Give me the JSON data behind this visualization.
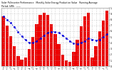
{
  "title_line1": "Solar PV/Inverter Performance   Monthly Solar Energy Production Value   Running Average",
  "title_line2": "Period: kWh   ——",
  "bar_color": "#ee0000",
  "line_color": "#0000dd",
  "background_color": "#ffffff",
  "grid_color": "#aaaaaa",
  "bar_values": [
    85,
    70,
    52,
    35,
    18,
    12,
    15,
    30,
    50,
    72,
    88,
    92,
    88,
    72,
    55,
    38,
    20,
    10,
    8,
    25,
    45,
    68,
    85,
    92,
    15,
    35,
    60,
    78,
    95
  ],
  "running_avg": [
    85,
    80,
    74,
    67,
    59,
    51,
    45,
    40,
    40,
    43,
    48,
    53,
    57,
    59,
    59,
    57,
    53,
    48,
    43,
    39,
    38,
    40,
    43,
    48,
    46,
    44,
    46,
    50,
    55
  ],
  "n_bars": 29,
  "ylim": [
    0,
    100
  ],
  "ytick_vals": [
    0,
    10,
    20,
    30,
    40,
    50,
    60,
    70,
    80,
    90,
    100
  ],
  "ytick_labels": [
    "0.",
    "1.",
    "2.",
    "3.",
    "4.",
    "5.",
    "6.",
    "7.",
    "8.",
    "9.",
    "1."
  ],
  "xtick_labels": [
    "Jan\n'08",
    "Feb\n'08",
    "Mar\n'08",
    "Apr\n'08",
    "May\n'08",
    "Jun\n'08",
    "Jul\n'08",
    "Aug\n'08",
    "Sep\n'08",
    "Oct\n'08",
    "Nov\n'08",
    "Dec\n'08",
    "Jan\n'09",
    "Feb\n'09",
    "Mar\n'09",
    "Apr\n'09",
    "May\n'09",
    "Jun\n'09",
    "Jul\n'09",
    "Aug\n'09",
    "Sep\n'09",
    "Oct\n'09",
    "Nov\n'09",
    "Dec\n'09",
    "Jan\n'10",
    "Feb\n'10",
    "Mar\n'10",
    "Apr\n'10",
    "May\n'10"
  ]
}
